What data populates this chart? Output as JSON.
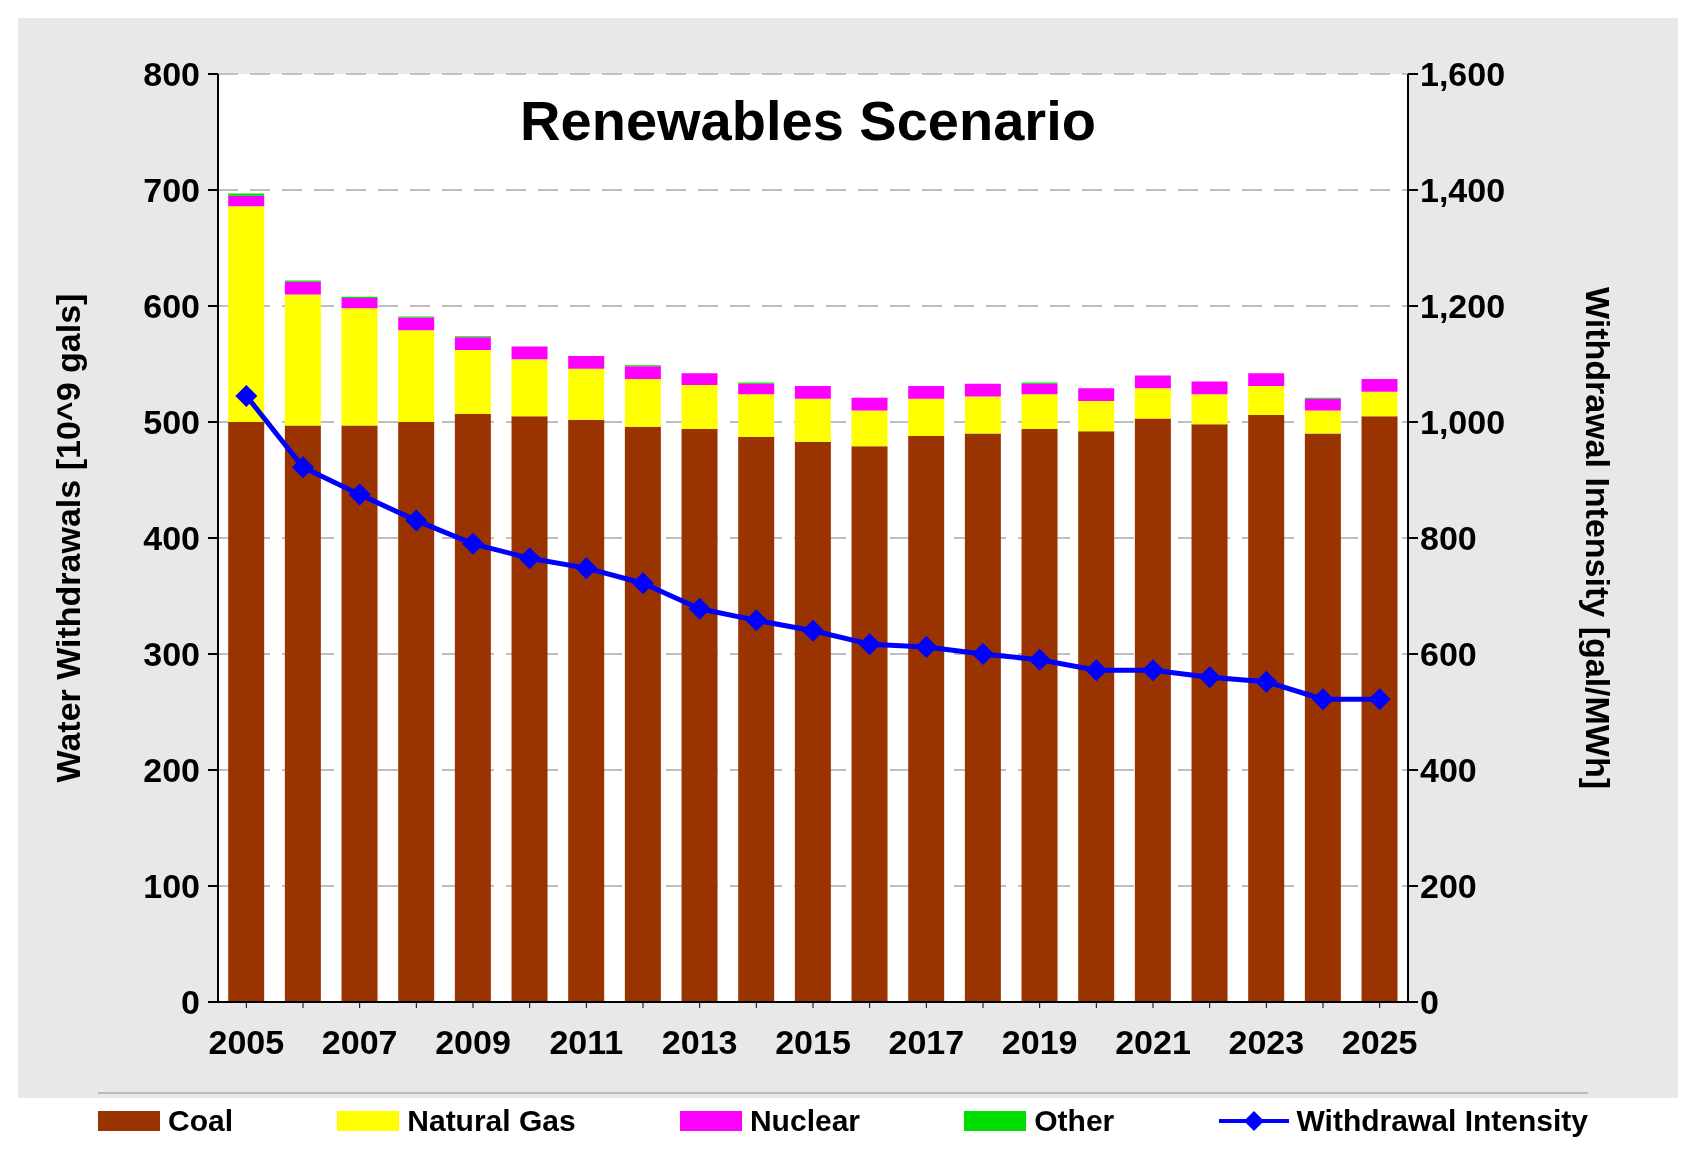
{
  "chart_data": {
    "type": "bar",
    "title": "Renewables Scenario",
    "ylabel": "Water Withdrawals [10^9 gals]",
    "y2label": "Withdrawal Intensity [gal/MWh]",
    "categories": [
      "2005",
      null,
      "2007",
      null,
      "2009",
      null,
      "2011",
      null,
      "2013",
      null,
      "2015",
      null,
      "2017",
      null,
      "2019",
      null,
      "2021",
      null,
      "2023",
      null,
      "2025"
    ],
    "stacked": true,
    "series": [
      {
        "name": "Coal",
        "color": "#993300",
        "values": [
          500,
          497,
          497,
          500,
          507,
          505,
          502,
          496,
          494,
          487,
          483,
          479,
          488,
          490,
          494,
          492,
          503,
          498,
          506,
          490,
          505
        ]
      },
      {
        "name": "Natural Gas",
        "color": "#ffff00",
        "values": [
          186,
          113,
          101,
          79,
          55,
          49,
          44,
          41,
          38,
          37,
          37,
          31,
          32,
          32,
          30,
          26,
          26,
          26,
          25,
          20,
          21
        ]
      },
      {
        "name": "Nuclear",
        "color": "#ff00ff",
        "values": [
          9,
          11,
          9,
          11,
          11,
          11,
          11,
          11,
          10,
          9,
          11,
          11,
          11,
          11,
          9,
          11,
          11,
          11,
          11,
          10,
          11
        ]
      },
      {
        "name": "Other",
        "color": "#00dd00",
        "values": [
          2,
          1,
          1,
          1,
          1,
          0,
          0,
          1,
          0,
          1,
          0,
          0,
          0,
          0,
          1,
          0,
          0,
          0,
          0,
          1,
          0
        ]
      },
      {
        "name": "Withdrawal Intensity",
        "type": "line",
        "axis": "y2",
        "color": "#0000ff",
        "marker": "diamond",
        "values": [
          1045,
          922,
          875,
          830,
          790,
          765,
          748,
          722,
          678,
          658,
          640,
          617,
          612,
          600,
          590,
          572,
          572,
          560,
          552,
          522,
          522
        ]
      }
    ],
    "ylim": [
      0,
      800
    ],
    "yticks": [
      0,
      100,
      200,
      300,
      400,
      500,
      600,
      700,
      800
    ],
    "y2lim": [
      0,
      1600
    ],
    "y2ticks": [
      {
        "value": 0,
        "label": "0"
      },
      {
        "value": 200,
        "label": "200"
      },
      {
        "value": 400,
        "label": "400"
      },
      {
        "value": 600,
        "label": "600"
      },
      {
        "value": 800,
        "label": "800"
      },
      {
        "value": 1000,
        "label": "1,000"
      },
      {
        "value": 1200,
        "label": "1,200"
      },
      {
        "value": 1400,
        "label": "1,400"
      },
      {
        "value": 1600,
        "label": "1,600"
      }
    ],
    "grid": "y",
    "legend": "bottom"
  }
}
